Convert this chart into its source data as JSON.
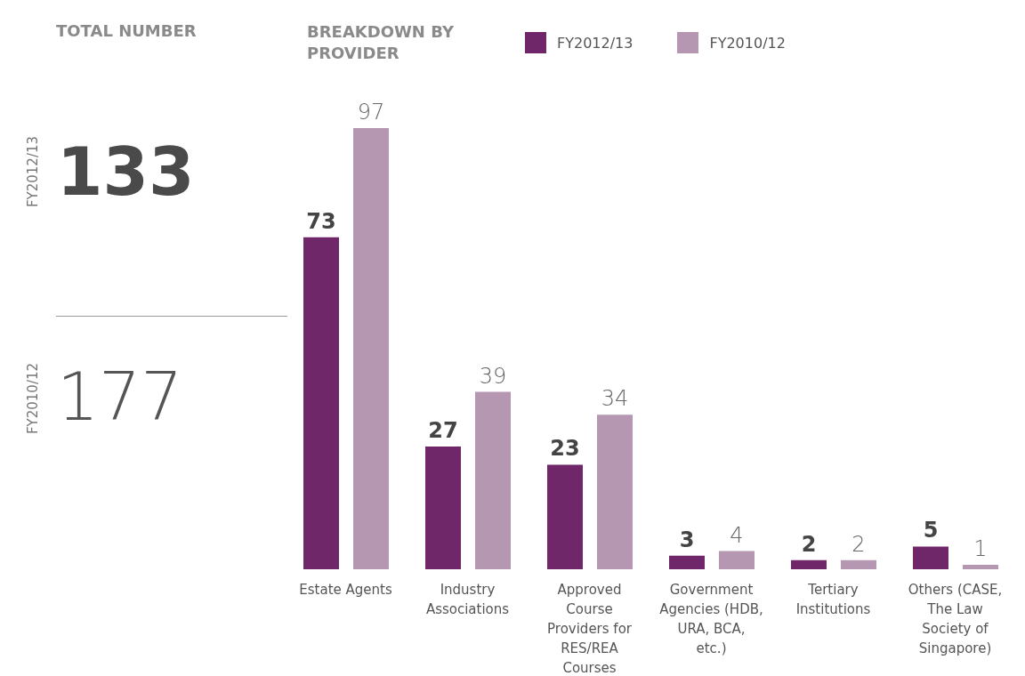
{
  "chart_data": [
    {
      "type": "other",
      "title": "TOTAL NUMBER",
      "categories": [
        "FY2012/13",
        "FY2010/12"
      ],
      "values": [
        133,
        177
      ],
      "data_labels": true
    },
    {
      "type": "bar",
      "title": "BREAKDOWN BY PROVIDER",
      "categories": [
        "Estate Agents",
        "Industry Associations",
        "Approved Course Providers for RES/REA Courses",
        "Government Agencies (HDB, URA, BCA, etc.)",
        "Tertiary Institutions",
        "Others (CASE, The Law Society of Singapore)"
      ],
      "series": [
        {
          "name": "FY2012/13",
          "color": "#6f2769",
          "values": [
            73,
            27,
            23,
            3,
            2,
            5
          ]
        },
        {
          "name": "FY2010/12",
          "color": "#b597b1",
          "values": [
            97,
            39,
            34,
            4,
            2,
            1
          ]
        }
      ],
      "data_labels": true,
      "legend": "top",
      "grid": false
    }
  ]
}
